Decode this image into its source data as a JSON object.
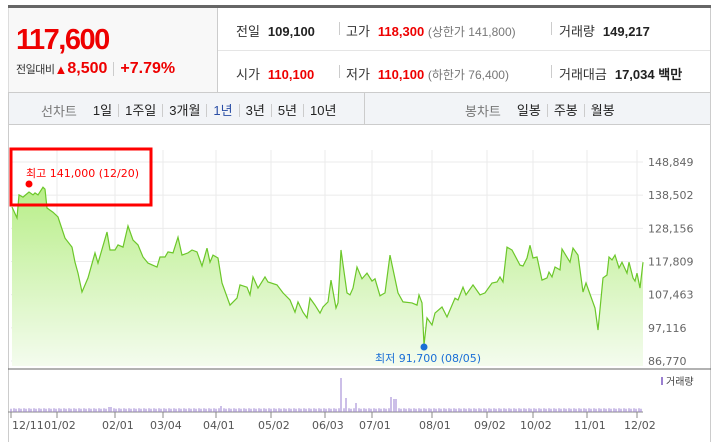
{
  "quote": {
    "price": "117,600",
    "change_label": "전일대비",
    "change_arrow": "▲",
    "change": "8,500",
    "change_pct": "+7.79%"
  },
  "info": {
    "prev_label": "전일",
    "prev": "109,100",
    "high_label": "고가",
    "high": "118,300",
    "upper_limit": "(상한가 141,800)",
    "volume_label": "거래량",
    "volume": "149,217",
    "open_label": "시가",
    "open": "110,100",
    "low_label": "저가",
    "low": "110,100",
    "lower_limit": "(하한가 76,400)",
    "amount_label": "거래대금",
    "amount": "17,034",
    "amount_unit": "백만"
  },
  "tabs": {
    "line_label": "선차트",
    "line": [
      "1일",
      "1주일",
      "3개월",
      "1년",
      "3년",
      "5년",
      "10년"
    ],
    "line_active": "1년",
    "candle_label": "봉차트",
    "candle": [
      "일봉",
      "주봉",
      "월봉"
    ]
  },
  "chart_data": {
    "type": "area",
    "y_ticks": [
      "148,849",
      "138,502",
      "128,156",
      "117,809",
      "107,463",
      "97,116",
      "86,770"
    ],
    "ylim": [
      86770,
      148849
    ],
    "x_ticks": [
      "12/11",
      "01/02",
      "02/01",
      "03/04",
      "04/01",
      "05/02",
      "06/03",
      "07/01",
      "08/01",
      "09/02",
      "10/02",
      "11/01",
      "12/02"
    ],
    "grid": true,
    "series": [
      {
        "values": [
          134800,
          131400,
          138600,
          137900,
          139500,
          138600,
          139200,
          138600,
          141000,
          140400,
          134500,
          133200,
          131700,
          125100,
          122300,
          117600,
          114200,
          108300,
          112700,
          120500,
          117300,
          127000,
          121400,
          121400,
          123000,
          122300,
          128900,
          124500,
          123000,
          119200,
          117300,
          116100,
          119200,
          119200,
          120800,
          120500,
          125400,
          119800,
          120500,
          121400,
          120800,
          116400,
          122000,
          117600,
          119800,
          118900,
          111100,
          104200,
          106400,
          110500,
          109800,
          107400,
          113000,
          109500,
          113000,
          111400,
          110500,
          108000,
          105800,
          102000,
          105200,
          102000,
          100200,
          106400,
          104200,
          101700,
          103600,
          105200,
          112000,
          103300,
          104900,
          121400,
          108000,
          107400,
          109500,
          116100,
          112400,
          114200,
          111700,
          112400,
          107100,
          108000,
          119800,
          108000,
          105200,
          104900,
          104200,
          107400,
          104900,
          91700,
          100200,
          98000,
          101700,
          103600,
          100500,
          106400,
          105800,
          109800,
          107400,
          110500,
          107400,
          108000,
          111100,
          111400,
          113000,
          111400,
          122300,
          121400,
          116700,
          116400,
          118900,
          122900,
          118900,
          119200,
          112000,
          112700,
          114500,
          113000,
          116100,
          115200,
          121700,
          117600,
          122000,
          119800,
          108300,
          111100,
          103300,
          96400,
          112700,
          113600,
          119200,
          118300,
          119800,
          115800,
          117600,
          114200,
          117600,
          112700,
          111700,
          114200,
          109500,
          117600
        ]
      }
    ],
    "high_annotation": "최고 141,000 (12/20)",
    "low_annotation": "최저 91,700 (08/05)",
    "volume_legend": "거래량",
    "colors": {
      "line": "#6cc72a",
      "fill": "#c8f0a0",
      "high": "#ff0000",
      "low": "#1a6fd6",
      "volume": "#9a7fd0",
      "highlight_box": "#ff0000"
    }
  }
}
